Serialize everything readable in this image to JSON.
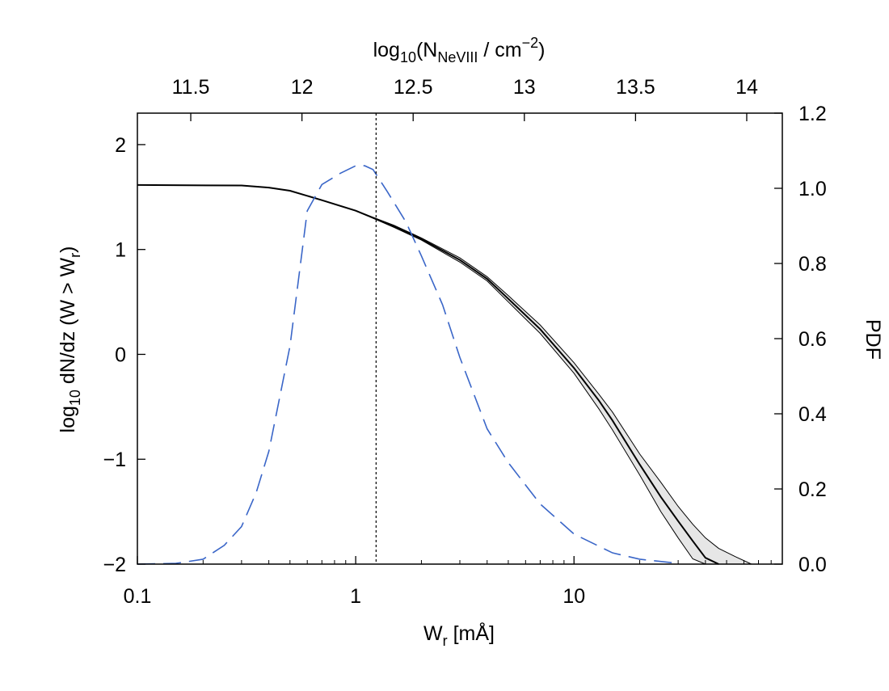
{
  "chart_data": {
    "type": "line",
    "xlabel": [
      "W",
      "r",
      " [mÅ]"
    ],
    "ylabel": [
      "log",
      "10",
      " dN/dz (W > W",
      "r",
      ")"
    ],
    "y2label": "PDF",
    "x2label": [
      "log",
      "10",
      "(N",
      "NeVIII",
      " / cm",
      "−2",
      ")"
    ],
    "xscale": "log",
    "xlim": [
      0.1,
      90
    ],
    "xticks": [
      0.1,
      1,
      10
    ],
    "xminorticks": [
      0.2,
      0.3,
      0.4,
      0.5,
      0.6,
      0.7,
      0.8,
      0.9,
      2,
      3,
      4,
      5,
      6,
      7,
      8,
      9,
      20,
      30,
      40,
      50,
      60,
      70,
      80
    ],
    "x2lim": [
      11.26,
      14.16
    ],
    "x2ticks": [
      11.5,
      12,
      12.5,
      13,
      13.5,
      14
    ],
    "ylim": [
      -2,
      2.3
    ],
    "yticks": [
      {
        "value": -2,
        "label": "−2"
      },
      {
        "value": -1,
        "label": "−1"
      },
      0,
      1,
      2
    ],
    "y2lim": [
      0,
      1.2
    ],
    "y2ticks": [
      {
        "value": 0,
        "label": "0.0"
      },
      0.2,
      0.4,
      0.6,
      0.8,
      {
        "value": 1,
        "label": "1.0"
      },
      1.2
    ],
    "vline": 1.24,
    "band_color": "#e6e6e6",
    "series": [
      {
        "color": "#000000",
        "style": "solid",
        "width": 2,
        "x": [
          0.1,
          0.3,
          0.4,
          0.5,
          0.7,
          1,
          1.5,
          2,
          3,
          4,
          5,
          7,
          10,
          13,
          15,
          20,
          25,
          30,
          35,
          40,
          46,
          55,
          65
        ],
        "values": [
          1.615,
          1.61,
          1.59,
          1.56,
          1.47,
          1.37,
          1.22,
          1.1,
          0.9,
          0.72,
          0.53,
          0.24,
          -0.13,
          -0.44,
          -0.63,
          -1.05,
          -1.36,
          -1.59,
          -1.78,
          -1.94,
          -2.0,
          null,
          null
        ],
        "upper": [
          1.615,
          1.61,
          1.59,
          1.56,
          1.47,
          1.37,
          1.23,
          1.11,
          0.92,
          0.74,
          0.56,
          0.28,
          -0.08,
          -0.38,
          -0.55,
          -0.95,
          -1.22,
          -1.45,
          -1.62,
          -1.75,
          -1.85,
          -1.93,
          -2.0
        ],
        "lower": [
          1.615,
          1.61,
          1.59,
          1.56,
          1.47,
          1.37,
          1.21,
          1.09,
          0.88,
          0.7,
          0.5,
          0.2,
          -0.18,
          -0.52,
          -0.72,
          -1.15,
          -1.5,
          -1.75,
          -1.95,
          -2.0,
          null,
          null,
          null
        ]
      },
      {
        "color": "#3a66c8",
        "style": "dashed",
        "width": 1.6,
        "axis": "y2",
        "x": [
          0.1,
          0.15,
          0.2,
          0.25,
          0.3,
          0.35,
          0.4,
          0.5,
          0.6,
          0.7,
          0.85,
          1.0,
          1.1,
          1.2,
          1.4,
          1.7,
          2,
          2.5,
          3,
          4,
          5,
          7,
          10,
          15,
          20,
          30
        ],
        "values": [
          0,
          0.002,
          0.013,
          0.05,
          0.1,
          0.19,
          0.3,
          0.58,
          0.94,
          1.01,
          1.04,
          1.06,
          1.06,
          1.05,
          0.99,
          0.91,
          0.82,
          0.69,
          0.55,
          0.36,
          0.27,
          0.16,
          0.08,
          0.03,
          0.013,
          0.002
        ]
      }
    ]
  }
}
